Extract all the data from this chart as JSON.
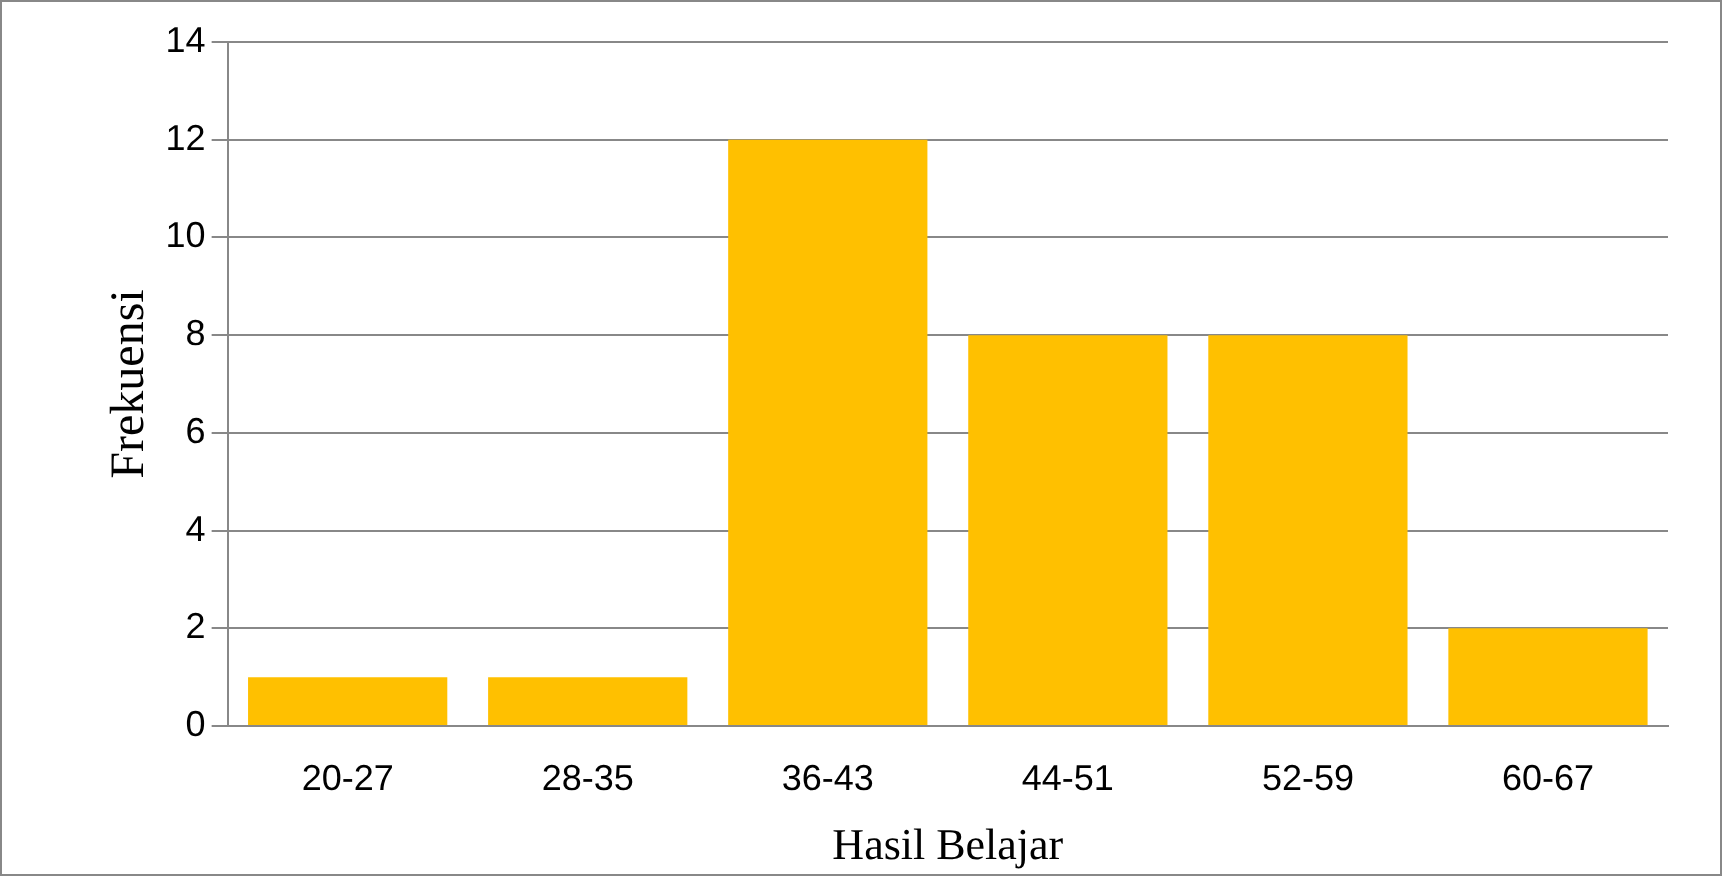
{
  "chart_data": {
    "type": "bar",
    "xlabel": "Hasil Belajar",
    "ylabel": "Frekuensi",
    "categories": [
      "20-27",
      "28-35",
      "36-43",
      "44-51",
      "52-59",
      "60-67"
    ],
    "values": [
      1,
      1,
      12,
      8,
      8,
      2
    ],
    "color": "#ffc000",
    "ylim": [
      0,
      14
    ],
    "yticks": [
      0,
      2,
      4,
      6,
      8,
      10,
      12,
      14
    ],
    "grid": "y",
    "legend": false
  }
}
